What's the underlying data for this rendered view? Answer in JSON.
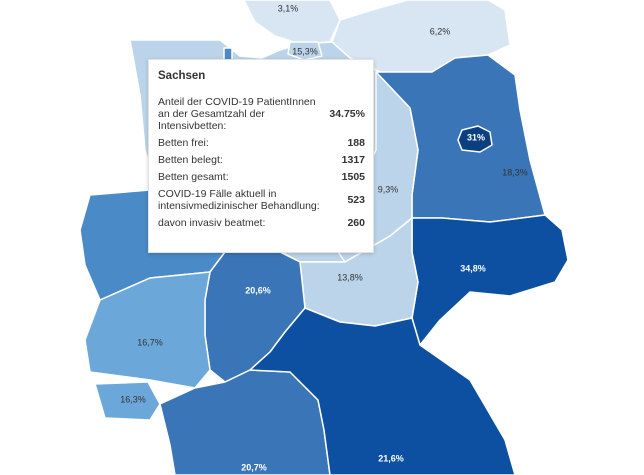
{
  "map": {
    "colors": {
      "lightest": "#d8e5f3",
      "light": "#bcd4ea",
      "medium_light": "#6ba7d8",
      "medium": "#4a8ac6",
      "medium_dark": "#3a75b8",
      "dark": "#0d4fa0",
      "highlight": "#0a3f80"
    },
    "regions": {
      "schleswig_holstein": "3,1%",
      "mecklenburg_vorpommern": "6,2%",
      "hamburg": "15,3%",
      "berlin": "31%",
      "brandenburg": "18,3%",
      "sachsen_anhalt": "9,3%",
      "thueringen": "13,8%",
      "sachsen": "34,8%",
      "hessen": "20,6%",
      "rheinland_pfalz": "16,7%",
      "saarland": "16,3%",
      "baden_wuerttemberg": "20,7%",
      "bayern": "21,6%"
    }
  },
  "tooltip": {
    "title": "Sachsen",
    "rows": [
      {
        "label": "Anteil der COVID-19 PatientInnen an der Gesamtzahl der Intensivbetten:",
        "value": "34.75%"
      },
      {
        "label": "Betten frei:",
        "value": "188"
      },
      {
        "label": "Betten belegt:",
        "value": "1317"
      },
      {
        "label": "Betten gesamt:",
        "value": "1505"
      },
      {
        "label": "COVID-19 Fälle aktuell in intensivmedizinischer Behandlung:",
        "value": "523"
      },
      {
        "label": "davon invasiv beatmet:",
        "value": "260"
      }
    ]
  }
}
